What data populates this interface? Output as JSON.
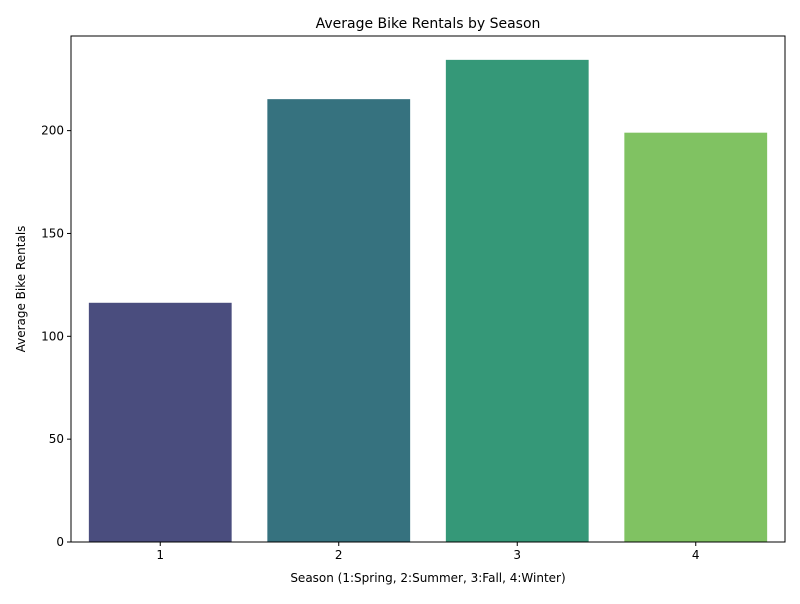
{
  "chart_data": {
    "type": "bar",
    "title": "Average Bike Rentals by Season",
    "xlabel": "Season (1:Spring, 2:Summer, 3:Fall, 4:Winter)",
    "ylabel": "Average Bike Rentals",
    "categories": [
      "1",
      "2",
      "3",
      "4"
    ],
    "values": [
      116.3,
      215.3,
      234.4,
      199.0
    ],
    "colors": [
      "#4a4d7e",
      "#36727f",
      "#359878",
      "#80c262"
    ],
    "ylim": [
      0,
      246
    ],
    "yticks": [
      0,
      50,
      100,
      150,
      200
    ],
    "ytick_labels": [
      "0",
      "50",
      "100",
      "150",
      "200"
    ],
    "grid": false,
    "legend": "none"
  }
}
